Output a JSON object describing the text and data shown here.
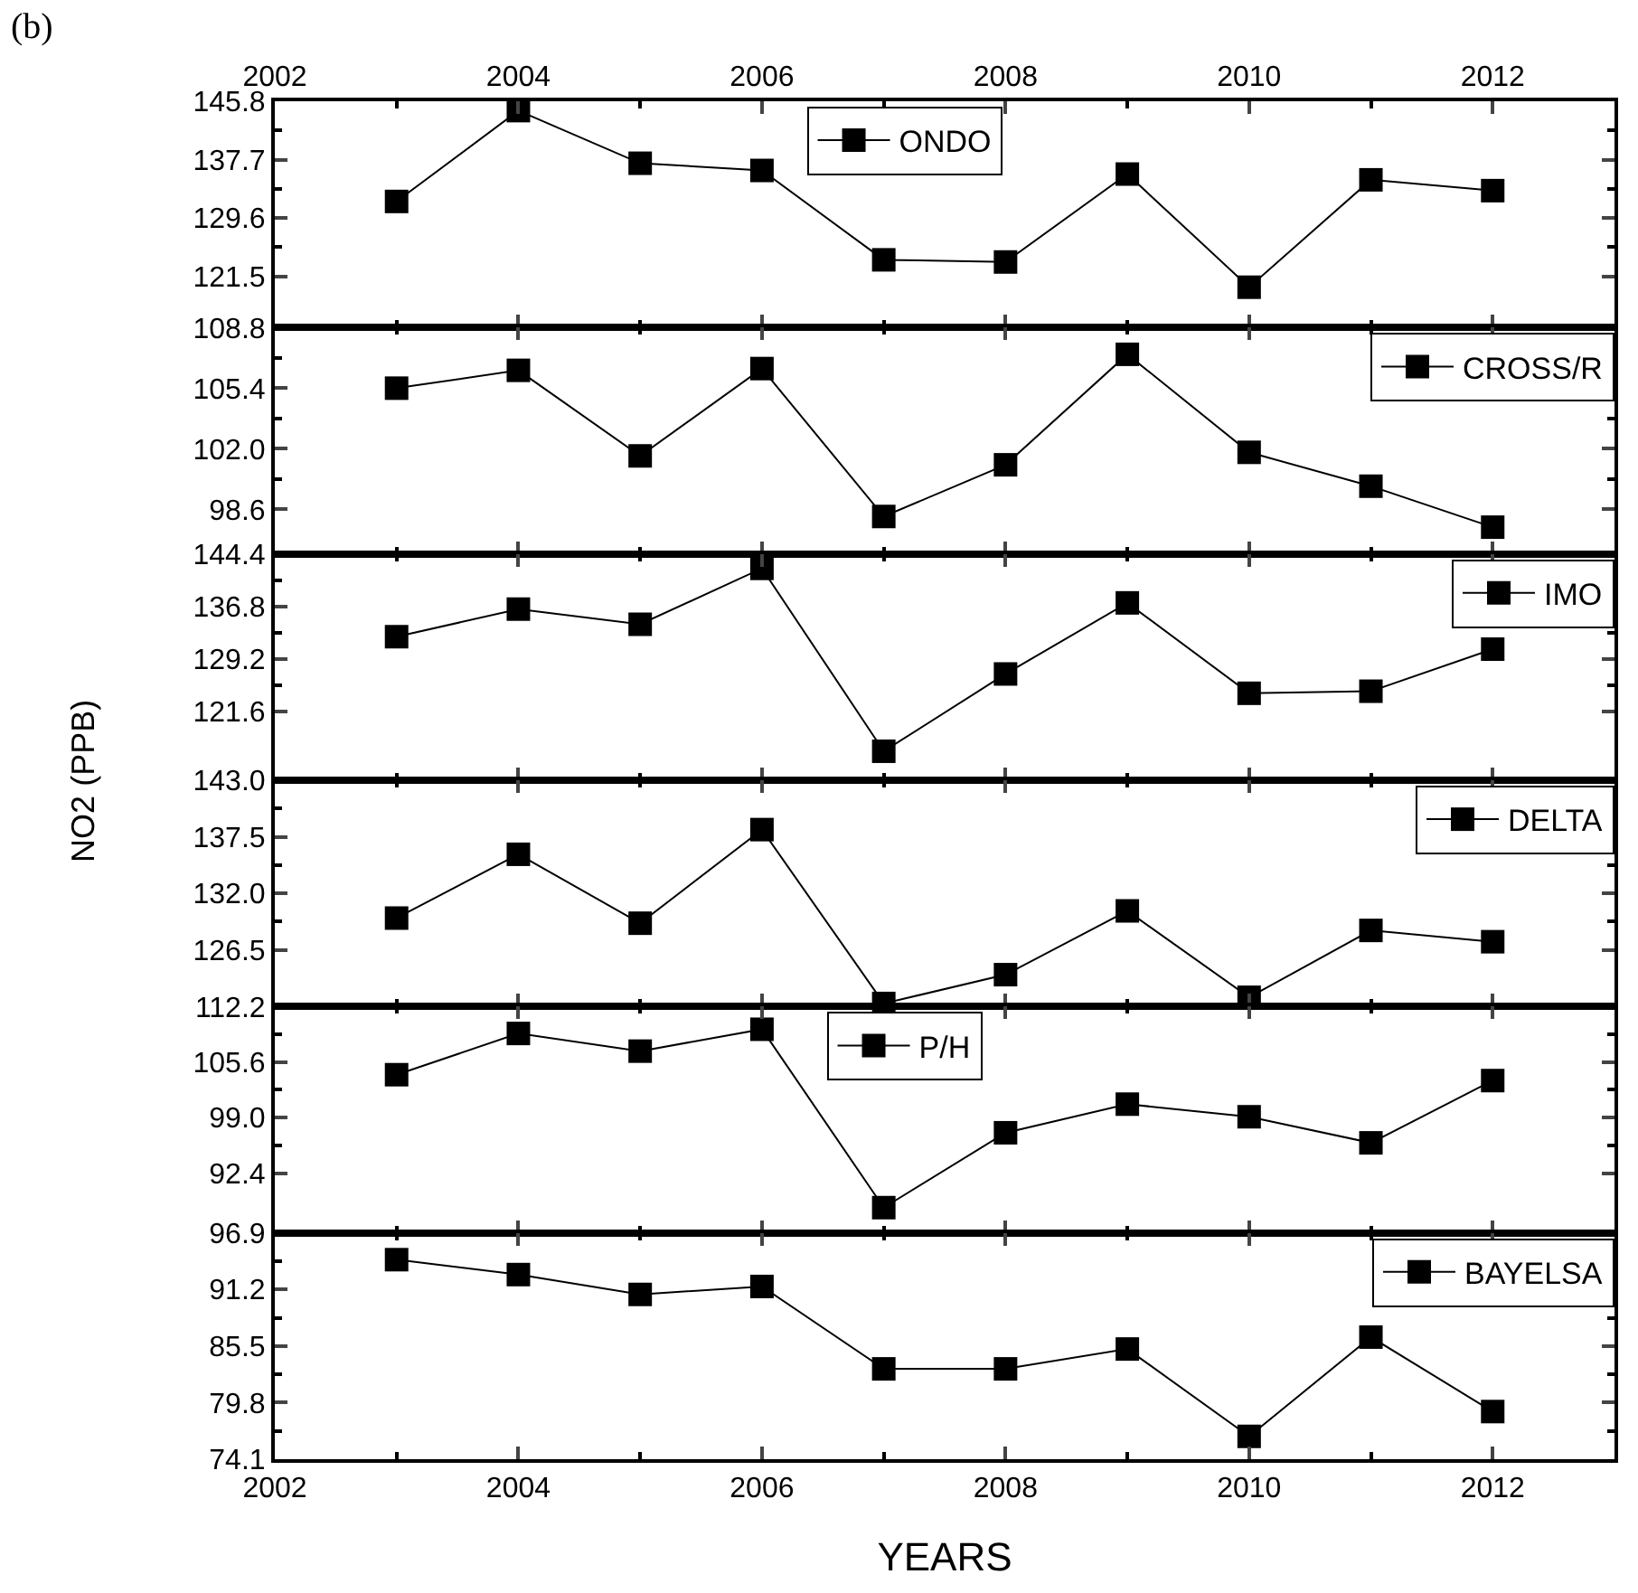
{
  "chart_data": [
    {
      "type": "line",
      "x": [
        2003,
        2004,
        2005,
        2006,
        2007,
        2008,
        2009,
        2010,
        2011,
        2012
      ],
      "x2lim": [
        2002,
        2013
      ],
      "x2ticks": [
        2002,
        2004,
        2006,
        2008,
        2010,
        2012
      ],
      "ylim": [
        114.4,
        145.8
      ],
      "yticks": [
        121.5,
        129.6,
        137.7,
        145.8
      ],
      "tick_labels": "y",
      "marker": "square",
      "line_style": "solid",
      "legend": "top",
      "annotations": [
        "(b)"
      ],
      "series": [
        {
          "name": "ONDO",
          "color": "#000000",
          "values": [
            131.9,
            144.5,
            137.2,
            136.2,
            123.8,
            123.5,
            135.7,
            120.0,
            134.9,
            133.4
          ]
        }
      ]
    },
    {
      "type": "line",
      "x": [
        2003,
        2004,
        2005,
        2006,
        2007,
        2008,
        2009,
        2010,
        2011,
        2012
      ],
      "xlim": [
        2002,
        2013
      ],
      "xticks": [
        2002,
        2004,
        2006,
        2008,
        2010,
        2012
      ],
      "ylim": [
        96.1,
        108.8
      ],
      "yticks": [
        98.6,
        {
          "value": 102.0,
          "label": "102.0"
        },
        105.4,
        108.8
      ],
      "tick_labels": "y",
      "marker": "square",
      "line_style": "solid",
      "legend": "top right",
      "series": [
        {
          "name": "CROSS/R",
          "color": "#000000",
          "values": [
            105.4,
            106.4,
            101.6,
            106.5,
            98.2,
            101.1,
            107.3,
            101.8,
            99.9,
            97.6
          ]
        }
      ]
    },
    {
      "type": "line",
      "x": [
        2003,
        2004,
        2005,
        2006,
        2007,
        2008,
        2009,
        2010,
        2011,
        2012
      ],
      "xlim": [
        2002,
        2013
      ],
      "xticks": [
        2002,
        2004,
        2006,
        2008,
        2010,
        2012
      ],
      "ylim": [
        111.6,
        144.4
      ],
      "yticks": [
        121.6,
        129.2,
        136.8,
        144.4
      ],
      "tick_labels": "y",
      "marker": "square",
      "line_style": "solid",
      "legend": "top right",
      "ylabel": "NO2 (PPB)",
      "series": [
        {
          "name": "IMO",
          "color": "#000000",
          "values": [
            132.4,
            136.4,
            134.2,
            142.3,
            115.8,
            127.0,
            137.3,
            124.2,
            124.5,
            130.6
          ]
        }
      ]
    },
    {
      "type": "line",
      "x": [
        2003,
        2004,
        2005,
        2006,
        2007,
        2008,
        2009,
        2010,
        2011,
        2012
      ],
      "xlim": [
        2002,
        2013
      ],
      "xticks": [
        2002,
        2004,
        2006,
        2008,
        2010,
        2012
      ],
      "ylim": [
        121.0,
        143.0
      ],
      "yticks": [
        126.5,
        {
          "value": 132.0,
          "label": "132.0"
        },
        137.5,
        {
          "value": 143.0,
          "label": "143.0"
        }
      ],
      "tick_labels": "y",
      "marker": "square",
      "line_style": "solid",
      "legend": "top right",
      "series": [
        {
          "name": "DELTA",
          "color": "#000000",
          "values": [
            129.6,
            135.8,
            129.1,
            138.2,
            121.3,
            124.1,
            130.3,
            121.9,
            128.4,
            127.3
          ]
        }
      ]
    },
    {
      "type": "line",
      "x": [
        2003,
        2004,
        2005,
        2006,
        2007,
        2008,
        2009,
        2010,
        2011,
        2012
      ],
      "xlim": [
        2002,
        2013
      ],
      "xticks": [
        2002,
        2004,
        2006,
        2008,
        2010,
        2012
      ],
      "ylim": [
        85.3,
        112.2
      ],
      "yticks": [
        92.4,
        {
          "value": 99.0,
          "label": "99.0"
        },
        105.6,
        112.2
      ],
      "tick_labels": "y",
      "marker": "square",
      "line_style": "solid",
      "legend": "top",
      "series": [
        {
          "name": "P/H",
          "color": "#000000",
          "values": [
            104.1,
            109.0,
            106.9,
            109.5,
            88.3,
            97.2,
            100.6,
            99.1,
            96.0,
            103.4
          ]
        }
      ]
    },
    {
      "type": "line",
      "x": [
        2003,
        2004,
        2005,
        2006,
        2007,
        2008,
        2009,
        2010,
        2011,
        2012
      ],
      "xlim": [
        2002,
        2013
      ],
      "xticks": [
        2002,
        2004,
        2006,
        2008,
        2010,
        2012
      ],
      "ylim": [
        74.1,
        96.9
      ],
      "yticks": [
        74.1,
        79.8,
        85.5,
        91.2,
        96.9
      ],
      "marker": "square",
      "line_style": "solid",
      "legend": "top right",
      "xlabel": "YEARS",
      "series": [
        {
          "name": "BAYELSA",
          "color": "#000000",
          "values": [
            94.2,
            92.7,
            90.7,
            91.5,
            83.2,
            83.2,
            85.2,
            76.4,
            86.4,
            78.9
          ]
        }
      ]
    }
  ]
}
